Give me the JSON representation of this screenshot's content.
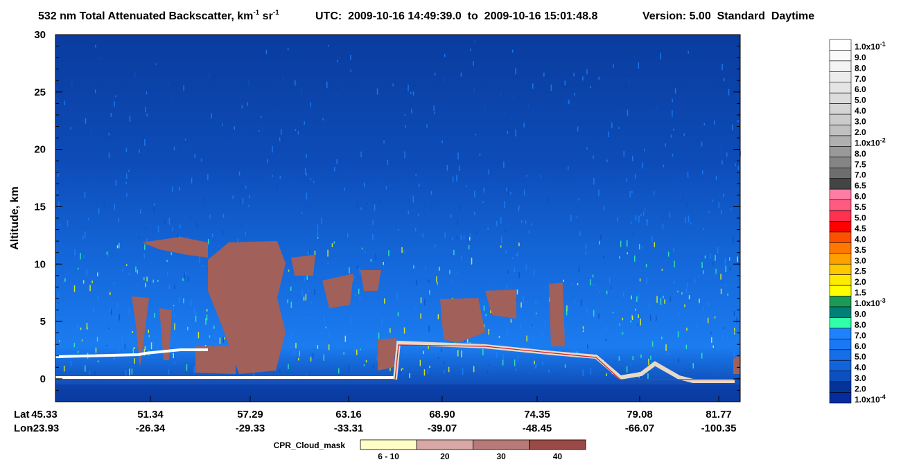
{
  "chart_data": {
    "type": "heatmap",
    "title": {
      "text": "532 nm Total Attenuated Backscatter, km",
      "sup1": "-1",
      "mid": " sr",
      "sup2": "-1"
    },
    "time_range": "UTC:  2009-10-16 14:49:39.0  to  2009-10-16 15:01:48.8",
    "version": "Version: 5.00  Standard  Daytime",
    "ylabel": "Altitude, km",
    "ylim": [
      -2,
      30
    ],
    "yticks": [
      0,
      5,
      10,
      15,
      20,
      25,
      30
    ],
    "x_rows": [
      "Lat",
      "Lon"
    ],
    "lat": [
      "45.33",
      "51.34",
      "57.29",
      "63.16",
      "68.90",
      "74.35",
      "79.08",
      "81.77"
    ],
    "lon": [
      "-23.93",
      "-26.34",
      "-29.33",
      "-33.31",
      "-39.07",
      "-48.45",
      "-66.07",
      "-100.35"
    ],
    "colorbar": [
      {
        "label": "1.0x10",
        "sup": "-1",
        "color": "#ffffff"
      },
      {
        "label": "9.0",
        "color": "#fafafa"
      },
      {
        "label": "8.0",
        "color": "#f3f3f3"
      },
      {
        "label": "7.0",
        "color": "#ececec"
      },
      {
        "label": "6.0",
        "color": "#e4e4e4"
      },
      {
        "label": "5.0",
        "color": "#dcdcdc"
      },
      {
        "label": "4.0",
        "color": "#d4d4d4"
      },
      {
        "label": "3.0",
        "color": "#cbcbcb"
      },
      {
        "label": "2.0",
        "color": "#c0c0c0"
      },
      {
        "label": "1.0x10",
        "sup": "-2",
        "color": "#b0b0b0"
      },
      {
        "label": "8.0",
        "color": "#999999"
      },
      {
        "label": "7.5",
        "color": "#858585"
      },
      {
        "label": "7.0",
        "color": "#6e6e6e"
      },
      {
        "label": "6.5",
        "color": "#444444"
      },
      {
        "label": "6.0",
        "color": "#ff7ca4"
      },
      {
        "label": "5.5",
        "color": "#ff5a80"
      },
      {
        "label": "5.0",
        "color": "#ff3050"
      },
      {
        "label": "4.5",
        "color": "#ff0000"
      },
      {
        "label": "4.0",
        "color": "#ff5000"
      },
      {
        "label": "3.5",
        "color": "#ff7800"
      },
      {
        "label": "3.0",
        "color": "#ffa000"
      },
      {
        "label": "2.5",
        "color": "#ffc800"
      },
      {
        "label": "2.0",
        "color": "#ffeb00"
      },
      {
        "label": "1.5",
        "color": "#ffff00"
      },
      {
        "label": "1.0x10",
        "sup": "-3",
        "color": "#1a9a55"
      },
      {
        "label": "9.0",
        "color": "#008078"
      },
      {
        "label": "8.0",
        "color": "#30ffa8"
      },
      {
        "label": "7.0",
        "color": "#1e82ff"
      },
      {
        "label": "6.0",
        "color": "#1a78f5"
      },
      {
        "label": "5.0",
        "color": "#166ee8"
      },
      {
        "label": "4.0",
        "color": "#1264dc"
      },
      {
        "label": "3.0",
        "color": "#0a50c0"
      },
      {
        "label": "2.0",
        "color": "#04349a"
      },
      {
        "label": "1.0x10",
        "sup": "-4",
        "color": "#062ca0"
      }
    ],
    "cloud_mask": {
      "title": "CPR_Cloud_mask",
      "categories": [
        "6 - 10",
        "20",
        "30",
        "40"
      ],
      "colors": [
        "#ffffc8",
        "#d8a8a6",
        "#b87a78",
        "#9a4a46"
      ]
    }
  }
}
